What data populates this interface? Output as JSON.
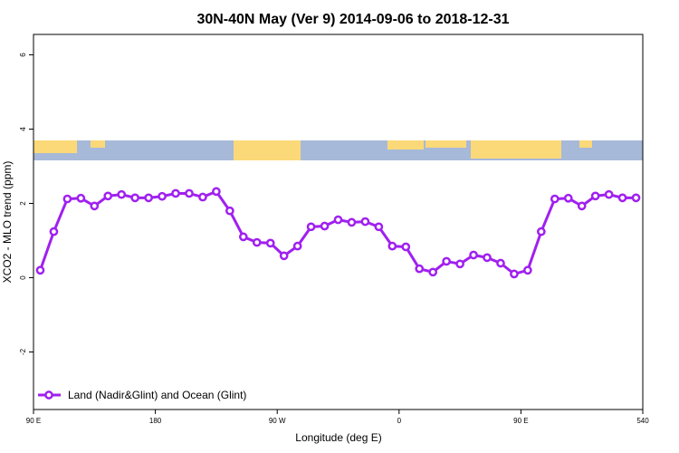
{
  "chart_data": {
    "type": "line",
    "title": "30N-40N May (Ver 9)   2014-09-06 to 2018-12-31",
    "xlabel": "Longitude (deg E)",
    "ylabel": "XCO2 - MLO trend (ppm)",
    "x": [
      95,
      105,
      115,
      125,
      135,
      145,
      155,
      165,
      175,
      185,
      195,
      205,
      215,
      225,
      235,
      245,
      255,
      265,
      275,
      285,
      295,
      305,
      315,
      325,
      335,
      345,
      355,
      365,
      375,
      385,
      395,
      405,
      415,
      425,
      435,
      445,
      455,
      465,
      475,
      485,
      495,
      505,
      515,
      525,
      535
    ],
    "series": [
      {
        "name": "Land (Nadir&Glint) and Ocean (Glint)",
        "color": "#a020f0",
        "values": [
          0.2,
          1.24,
          2.12,
          2.14,
          1.93,
          2.2,
          2.24,
          2.15,
          2.15,
          2.19,
          2.27,
          2.27,
          2.17,
          2.32,
          1.8,
          1.1,
          0.95,
          0.93,
          0.59,
          0.85,
          1.37,
          1.39,
          1.56,
          1.49,
          1.51,
          1.37,
          0.85,
          0.83,
          0.24,
          0.15,
          0.44,
          0.37,
          0.61,
          0.54,
          0.39,
          0.1,
          0.2,
          1.24,
          2.12,
          2.14,
          1.93,
          2.2,
          2.24,
          2.15,
          2.15
        ]
      }
    ],
    "xlim": [
      90,
      540
    ],
    "xticks": [
      {
        "value": 90,
        "label": "90 E"
      },
      180,
      {
        "value": 270,
        "label": "90 W"
      },
      {
        "value": 360,
        "label": "0"
      },
      {
        "value": 450,
        "label": "90 E"
      },
      540
    ],
    "ylim": [
      -3.55,
      6.55
    ],
    "yticks": [
      -2,
      0,
      2,
      4,
      6
    ],
    "legend": "bottom-left"
  }
}
